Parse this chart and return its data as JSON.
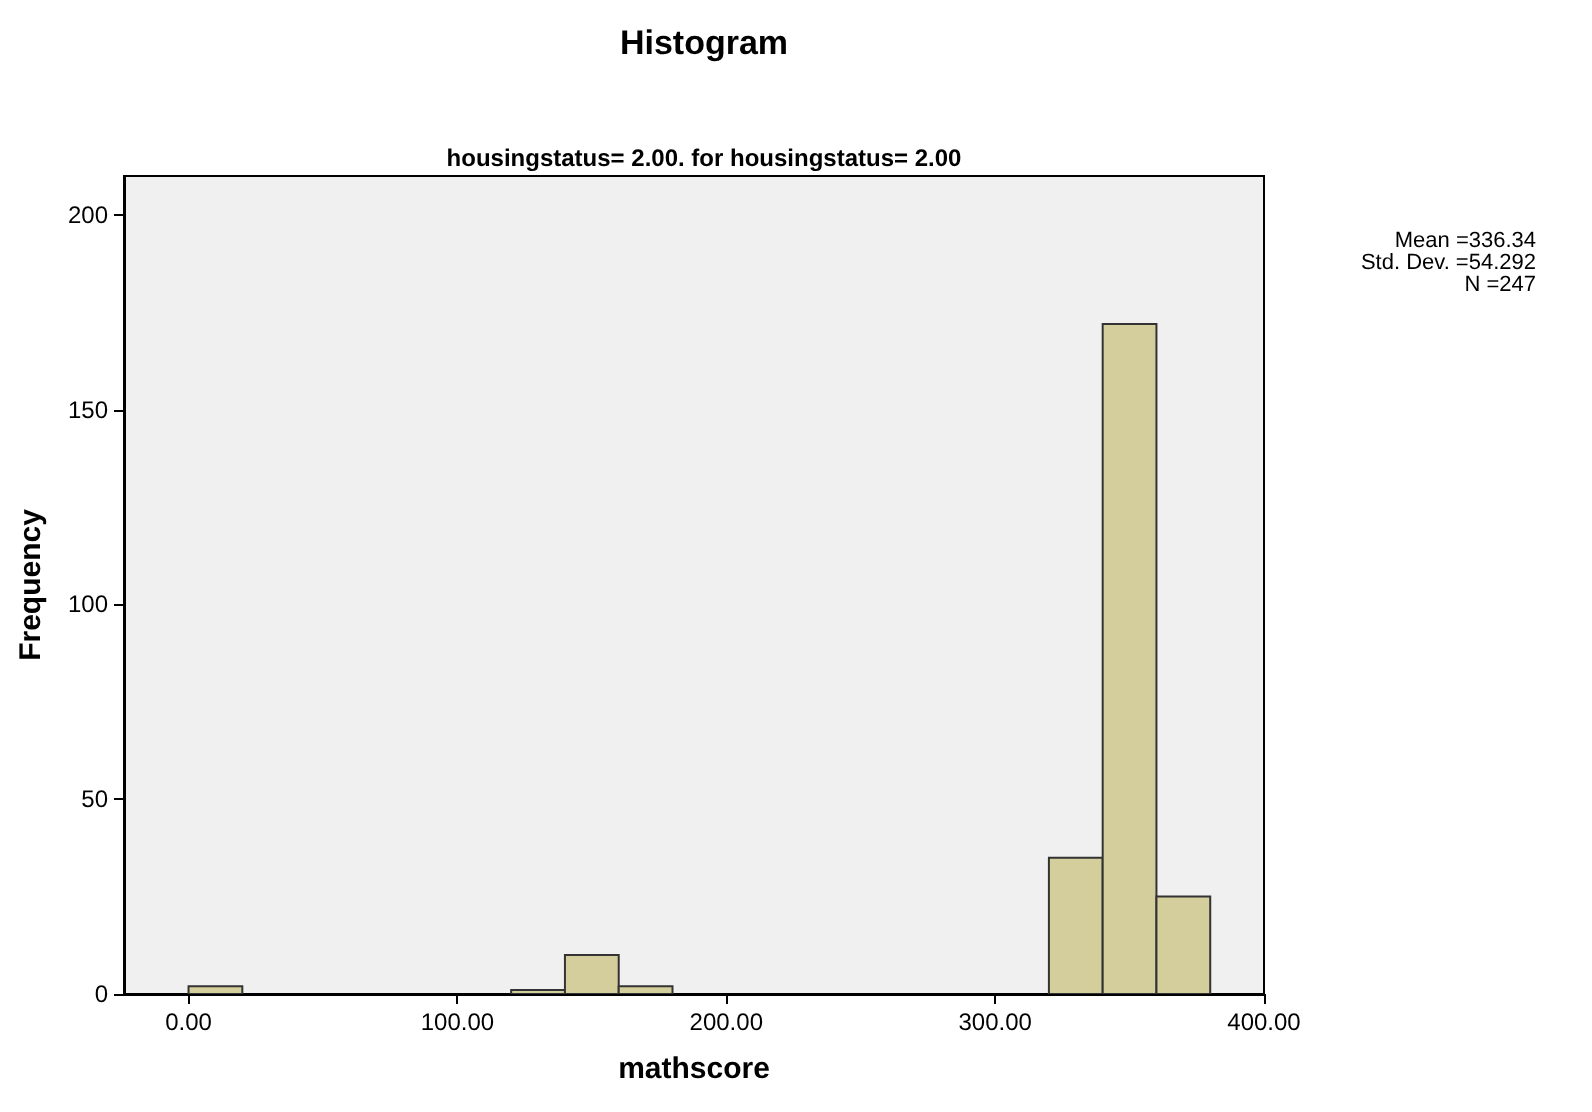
{
  "chart_data": {
    "type": "histogram",
    "title": "Histogram",
    "subtitle": "housingstatus= 2.00. for housingstatus= 2.00",
    "xlabel": "mathscore",
    "ylabel": "Frequency",
    "bins": [
      0,
      20,
      40,
      60,
      80,
      100,
      120,
      140,
      160,
      180,
      200,
      220,
      240,
      260,
      280,
      300,
      320,
      340,
      360,
      380
    ],
    "values": [
      2,
      0,
      0,
      0,
      0,
      0,
      1,
      10,
      2,
      0,
      0,
      0,
      0,
      0,
      0,
      0,
      35,
      172,
      25
    ],
    "color": "#d3ce9c",
    "xlim": [
      -24,
      400
    ],
    "xticks": [
      {
        "value": 0,
        "label": "0.00"
      },
      {
        "value": 100,
        "label": "100.00"
      },
      {
        "value": 200,
        "label": "200.00"
      },
      {
        "value": 300,
        "label": "300.00"
      },
      {
        "value": 400,
        "label": "400.00"
      }
    ],
    "ylim": [
      0,
      210
    ],
    "yticks": [
      0,
      50,
      100,
      150,
      200
    ],
    "annotations": [
      "Mean =336.34",
      "Std. Dev. =54.292",
      "N =247"
    ]
  }
}
